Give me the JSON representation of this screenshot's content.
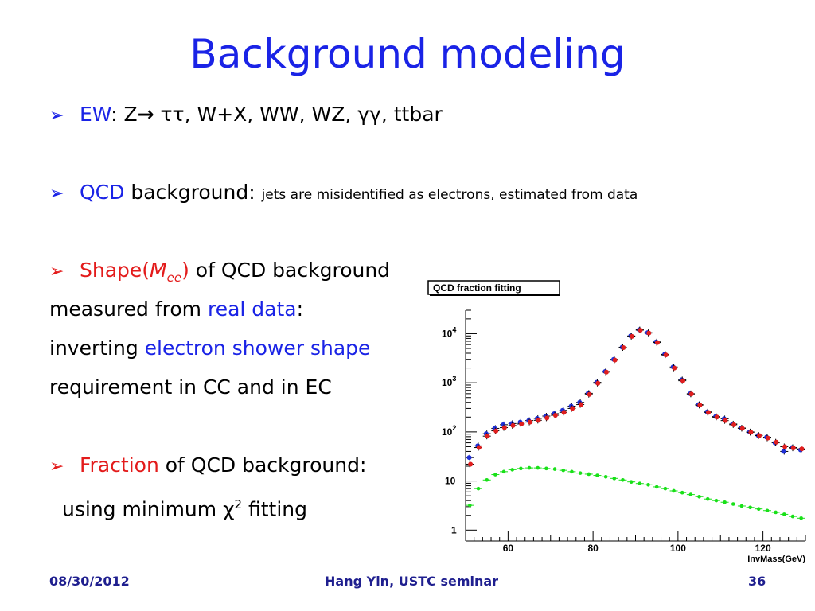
{
  "slide": {
    "title": "Background modeling",
    "b1": {
      "label": "EW",
      "sep": ": ",
      "z": "Z",
      "rest": " ττ, W+X, WW, WZ, γγ, ttbar"
    },
    "b2": {
      "label": "QCD",
      "word": " background: ",
      "desc": "jets are misidentified as electrons,  estimated from data"
    },
    "b3": {
      "label_pre": "Shape(",
      "label_m": "M",
      "label_sub": "ee",
      "label_post": ")",
      "rest": " of QCD background"
    },
    "l4": {
      "pre": "measured from ",
      "hl": "real data",
      "post": ":"
    },
    "l5": {
      "pre": "inverting ",
      "hl": "electron shower shape"
    },
    "l6": {
      "text": "requirement in CC and in EC"
    },
    "b4": {
      "label": "Fraction",
      "rest": " of QCD background:"
    },
    "l7": {
      "pre": "using minimum χ",
      "sup": "2",
      "post": " fitting"
    }
  },
  "footer": {
    "date": "08/30/2012",
    "center": "Hang Yin, USTC seminar",
    "page": "36"
  },
  "chart_data": {
    "type": "scatter",
    "title": "QCD fraction fitting",
    "xlabel": "InvMass(GeV)",
    "ylabel": "",
    "log_y": true,
    "xlim": [
      50,
      130
    ],
    "ylim": [
      0.6,
      30000
    ],
    "xticks": [
      "60",
      "80",
      "100",
      "120"
    ],
    "yticks": [
      "1",
      "10",
      "10^2",
      "10^3",
      "10^4"
    ],
    "colors": {
      "data": "#1f2fd6",
      "total": "#e01e1e",
      "qcd": "#18e018"
    },
    "series": [
      {
        "key": "data",
        "x": [
          51,
          53,
          55,
          57,
          59,
          61,
          63,
          65,
          67,
          69,
          71,
          73,
          75,
          77,
          79,
          81,
          83,
          85,
          87,
          89,
          91,
          93,
          95,
          97,
          99,
          101,
          103,
          105,
          107,
          109,
          111,
          113,
          115,
          117,
          119,
          121,
          123,
          125,
          127,
          129
        ],
        "values": [
          30,
          52,
          92,
          118,
          140,
          148,
          158,
          170,
          188,
          210,
          235,
          275,
          335,
          400,
          610,
          1020,
          1700,
          3000,
          5300,
          9000,
          12000,
          10500,
          6800,
          3800,
          2100,
          1150,
          600,
          360,
          255,
          205,
          185,
          145,
          120,
          100,
          85,
          78,
          60,
          40,
          48,
          43
        ]
      },
      {
        "key": "total",
        "x": [
          51,
          53,
          55,
          57,
          59,
          61,
          63,
          65,
          67,
          69,
          71,
          73,
          75,
          77,
          79,
          81,
          83,
          85,
          87,
          89,
          91,
          93,
          95,
          97,
          99,
          101,
          103,
          105,
          107,
          109,
          111,
          113,
          115,
          117,
          119,
          121,
          123,
          125,
          127,
          129
        ],
        "values": [
          22,
          48,
          82,
          105,
          122,
          135,
          145,
          158,
          172,
          192,
          218,
          250,
          300,
          360,
          580,
          980,
          1650,
          2900,
          5200,
          8800,
          11800,
          10300,
          6600,
          3700,
          2000,
          1100,
          590,
          350,
          250,
          200,
          170,
          140,
          118,
          98,
          84,
          75,
          62,
          50,
          47,
          45
        ]
      },
      {
        "key": "qcd",
        "x": [
          51,
          53,
          55,
          57,
          59,
          61,
          63,
          65,
          67,
          69,
          71,
          73,
          75,
          77,
          79,
          81,
          83,
          85,
          87,
          89,
          91,
          93,
          95,
          97,
          99,
          101,
          103,
          105,
          107,
          109,
          111,
          113,
          115,
          117,
          119,
          121,
          123,
          125,
          127,
          129
        ],
        "values": [
          3.2,
          7,
          10.5,
          13.5,
          15.5,
          17,
          18,
          18.5,
          18.5,
          18,
          17.5,
          16.5,
          15.5,
          14.5,
          13.8,
          13,
          12.2,
          11.3,
          10.5,
          9.6,
          8.9,
          8.4,
          7.6,
          7,
          6.3,
          5.8,
          5.3,
          4.8,
          4.3,
          4,
          3.7,
          3.4,
          3.1,
          2.9,
          2.7,
          2.5,
          2.3,
          2.1,
          1.9,
          1.75
        ]
      }
    ]
  }
}
